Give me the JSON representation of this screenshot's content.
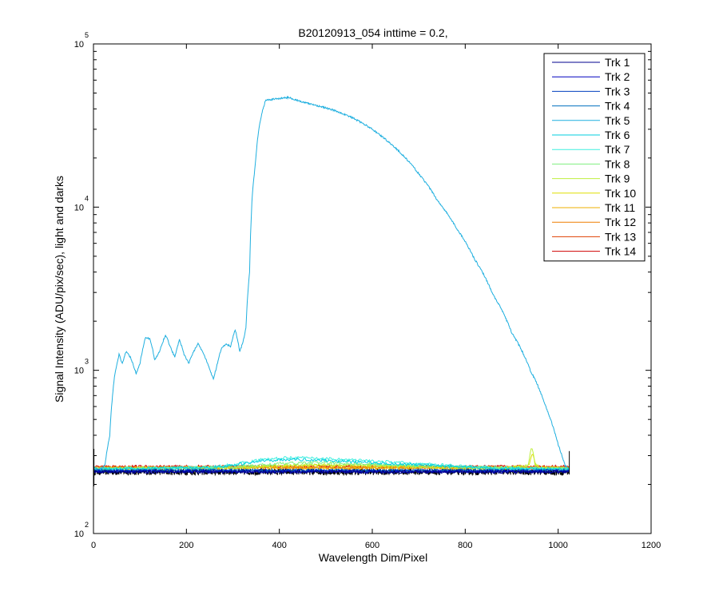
{
  "chart_data": {
    "type": "line",
    "title": "B20120913_054 inttime = 0.2,",
    "xlabel": "Wavelength Dim/Pixel",
    "ylabel": "Signal Intensity (ADU/pix/sec), light and darks",
    "xlim": [
      0,
      1200
    ],
    "ylim": [
      100,
      100000
    ],
    "yscale": "log",
    "x_ticks": [
      0,
      200,
      400,
      600,
      800,
      1000,
      1200
    ],
    "y_ticks": [
      {
        "base": "10",
        "exp": "2",
        "value": 100
      },
      {
        "base": "10",
        "exp": "3",
        "value": 1000
      },
      {
        "base": "10",
        "exp": "4",
        "value": 10000
      },
      {
        "base": "10",
        "exp": "5",
        "value": 100000
      }
    ],
    "grid": false,
    "legend_position": "top-right",
    "series": [
      {
        "name": "Trk 1",
        "color": "#00008F",
        "level": 238
      },
      {
        "name": "Trk 2",
        "color": "#0000BF",
        "level": 240
      },
      {
        "name": "Trk 3",
        "color": "#003FBF",
        "level": 242
      },
      {
        "name": "Trk 4",
        "color": "#006FBF",
        "level": 244
      },
      {
        "name": "Trk 5",
        "color": "#1FAFDF",
        "level": 245,
        "points": [
          [
            0,
            255
          ],
          [
            15,
            245
          ],
          [
            25,
            265
          ],
          [
            35,
            400
          ],
          [
            45,
            900
          ],
          [
            55,
            1250
          ],
          [
            62,
            1100
          ],
          [
            70,
            1300
          ],
          [
            80,
            1200
          ],
          [
            92,
            950
          ],
          [
            100,
            1100
          ],
          [
            112,
            1600
          ],
          [
            122,
            1550
          ],
          [
            132,
            1150
          ],
          [
            142,
            1300
          ],
          [
            155,
            1650
          ],
          [
            165,
            1400
          ],
          [
            175,
            1200
          ],
          [
            185,
            1550
          ],
          [
            195,
            1250
          ],
          [
            205,
            1100
          ],
          [
            215,
            1300
          ],
          [
            225,
            1450
          ],
          [
            235,
            1300
          ],
          [
            248,
            1050
          ],
          [
            258,
            880
          ],
          [
            265,
            1050
          ],
          [
            275,
            1350
          ],
          [
            285,
            1450
          ],
          [
            295,
            1400
          ],
          [
            305,
            1780
          ],
          [
            315,
            1300
          ],
          [
            322,
            1500
          ],
          [
            328,
            1800
          ],
          [
            336,
            4000
          ],
          [
            342,
            12000
          ],
          [
            348,
            18000
          ],
          [
            353,
            26000
          ],
          [
            360,
            35000
          ],
          [
            370,
            45000
          ],
          [
            390,
            46000
          ],
          [
            420,
            47000
          ],
          [
            450,
            44000
          ],
          [
            480,
            42000
          ],
          [
            520,
            39000
          ],
          [
            560,
            35000
          ],
          [
            600,
            30000
          ],
          [
            650,
            23000
          ],
          [
            700,
            16000
          ],
          [
            740,
            11000
          ],
          [
            780,
            7500
          ],
          [
            820,
            4800
          ],
          [
            860,
            2900
          ],
          [
            900,
            1700
          ],
          [
            940,
            1000
          ],
          [
            975,
            580
          ],
          [
            1000,
            350
          ],
          [
            1015,
            260
          ],
          [
            1025,
            250
          ]
        ]
      },
      {
        "name": "Trk 6",
        "color": "#00CFDF",
        "level": 246,
        "points": [
          [
            0,
            248
          ],
          [
            250,
            252
          ],
          [
            300,
            262
          ],
          [
            360,
            278
          ],
          [
            420,
            285
          ],
          [
            480,
            282
          ],
          [
            560,
            275
          ],
          [
            640,
            268
          ],
          [
            720,
            262
          ],
          [
            800,
            256
          ],
          [
            880,
            250
          ],
          [
            1025,
            247
          ]
        ]
      },
      {
        "name": "Trk 7",
        "color": "#3FEFDF",
        "level": 247,
        "points": [
          [
            0,
            249
          ],
          [
            250,
            254
          ],
          [
            300,
            265
          ],
          [
            360,
            283
          ],
          [
            420,
            292
          ],
          [
            480,
            290
          ],
          [
            560,
            282
          ],
          [
            640,
            274
          ],
          [
            720,
            266
          ],
          [
            800,
            258
          ],
          [
            880,
            252
          ],
          [
            1025,
            248
          ]
        ]
      },
      {
        "name": "Trk 8",
        "color": "#7FEF7F",
        "level": 249,
        "points": [
          [
            0,
            250
          ],
          [
            300,
            256
          ],
          [
            400,
            268
          ],
          [
            480,
            272
          ],
          [
            560,
            268
          ],
          [
            660,
            262
          ],
          [
            760,
            257
          ],
          [
            880,
            252
          ],
          [
            1025,
            250
          ]
        ]
      },
      {
        "name": "Trk 9",
        "color": "#BFEF3F",
        "level": 250,
        "points": [
          [
            0,
            250
          ],
          [
            300,
            254
          ],
          [
            420,
            262
          ],
          [
            520,
            264
          ],
          [
            640,
            259
          ],
          [
            760,
            255
          ],
          [
            880,
            252
          ],
          [
            935,
            260
          ],
          [
            943,
            345
          ],
          [
            950,
            265
          ],
          [
            960,
            253
          ],
          [
            1025,
            250
          ]
        ]
      },
      {
        "name": "Trk 10",
        "color": "#DFDF00",
        "level": 251,
        "points": [
          [
            0,
            251
          ],
          [
            300,
            254
          ],
          [
            420,
            260
          ],
          [
            520,
            262
          ],
          [
            640,
            258
          ],
          [
            760,
            255
          ],
          [
            880,
            253
          ],
          [
            938,
            262
          ],
          [
            945,
            310
          ],
          [
            952,
            262
          ],
          [
            962,
            254
          ],
          [
            1025,
            251
          ]
        ]
      },
      {
        "name": "Trk 11",
        "color": "#EFAF00",
        "level": 252
      },
      {
        "name": "Trk 12",
        "color": "#EF7F00",
        "level": 253
      },
      {
        "name": "Trk 13",
        "color": "#DF3F00",
        "level": 255
      },
      {
        "name": "Trk 14",
        "color": "#CF0000",
        "level": 257
      }
    ]
  }
}
